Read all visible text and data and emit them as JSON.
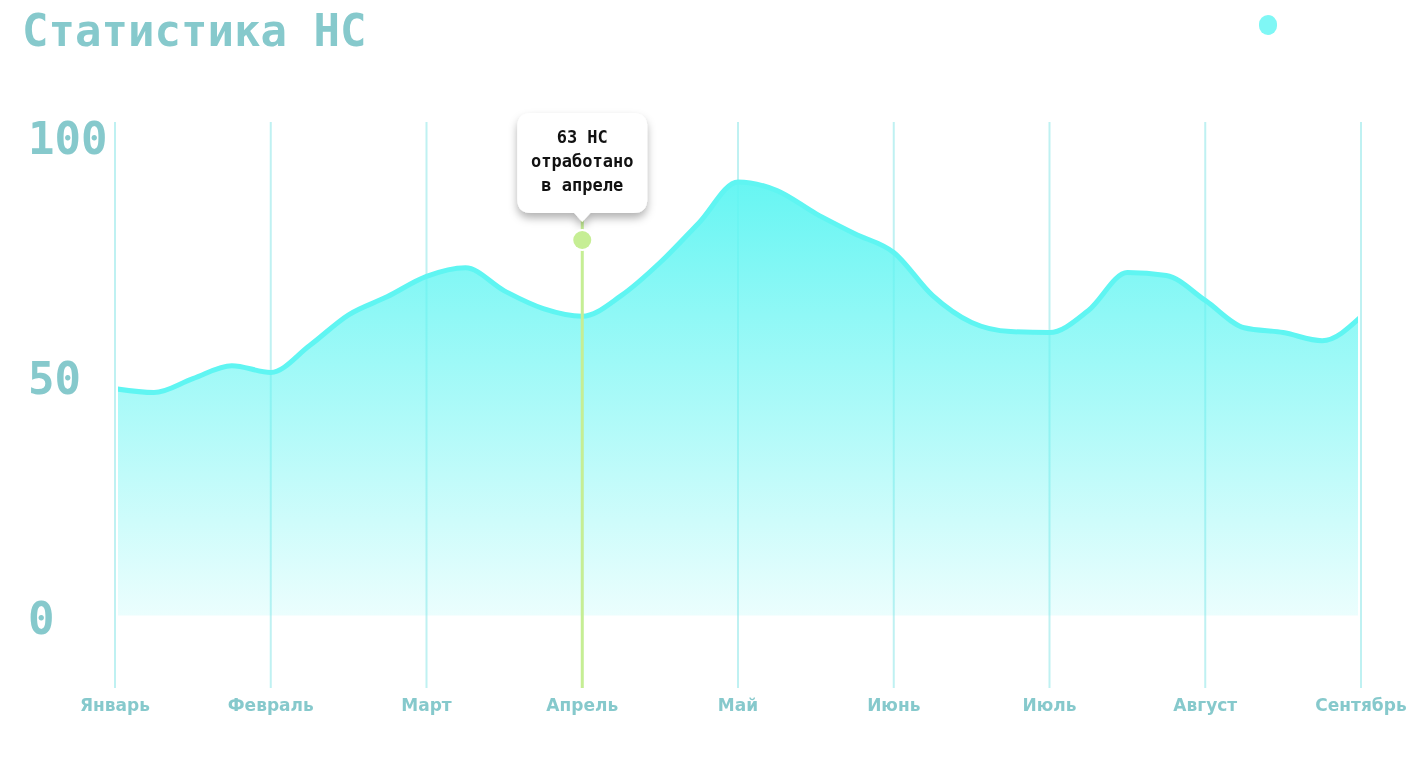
{
  "chart_data": {
    "type": "area",
    "title": "Статистика НС",
    "categories": [
      "Январь",
      null,
      null,
      null,
      "Февраль",
      null,
      null,
      null,
      "Март",
      null,
      null,
      null,
      "Апрель",
      null,
      null,
      null,
      "Май",
      null,
      null,
      null,
      "Июнь",
      null,
      null,
      null,
      "Июль",
      null,
      null,
      null,
      "Август",
      null,
      null,
      null,
      "Сентябрь"
    ],
    "series": [
      {
        "color": "#5ff5f2",
        "values": [
          47.9,
          47.1,
          50,
          52.7,
          51.3,
          56.9,
          63.3,
          67.1,
          71.3,
          73.1,
          68.3,
          64.6,
          63,
          67.3,
          74.2,
          82.5,
          91,
          89.2,
          84.4,
          80.2,
          76.3,
          67.3,
          61.7,
          59.8,
          59.6,
          64.2,
          72.1,
          71.5,
          66.3,
          60.6,
          59.6,
          57.9,
          62.9
        ]
      }
    ],
    "ylim": [
      -14.5,
      103.5
    ],
    "yticks": [
      0,
      50,
      100
    ],
    "grid": "x",
    "ref_lines": [
      {
        "axis": "x",
        "value": "Апрель",
        "label": "63 НС\nотработано\nв апреле",
        "color": "#c6ee94"
      }
    ]
  }
}
